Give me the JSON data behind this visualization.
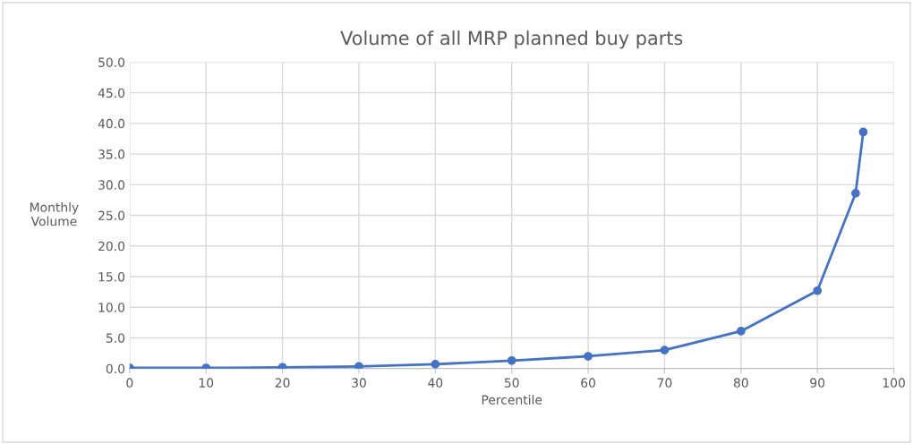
{
  "chart_data": {
    "type": "line",
    "title": "Volume of all MRP planned buy parts",
    "xlabel": "Percentile",
    "ylabel": "Monthly\nVolume",
    "x": [
      0,
      10,
      20,
      30,
      40,
      50,
      60,
      70,
      80,
      90,
      95,
      96
    ],
    "series": [
      {
        "color": "#4472c4",
        "values": [
          0.1,
          0.1,
          0.2,
          0.35,
          0.7,
          1.3,
          2.0,
          3.0,
          6.1,
          12.7,
          28.6,
          38.6
        ]
      }
    ],
    "xlim": [
      0,
      100
    ],
    "xticks": [
      0,
      10,
      20,
      30,
      40,
      50,
      60,
      70,
      80,
      90,
      100
    ],
    "ylim": [
      0,
      50
    ],
    "yticks": [
      {
        "value": 0,
        "label": "0.0"
      },
      {
        "value": 5,
        "label": "5.0"
      },
      {
        "value": 10,
        "label": "10.0"
      },
      {
        "value": 15,
        "label": "15.0"
      },
      {
        "value": 20,
        "label": "20.0"
      },
      {
        "value": 25,
        "label": "25.0"
      },
      {
        "value": 30,
        "label": "30.0"
      },
      {
        "value": 35,
        "label": "35.0"
      },
      {
        "value": 40,
        "label": "40.0"
      },
      {
        "value": 45,
        "label": "45.0"
      },
      {
        "value": 50,
        "label": "50.0"
      }
    ],
    "grid": true,
    "marker": "circle",
    "line_style": "solid"
  }
}
